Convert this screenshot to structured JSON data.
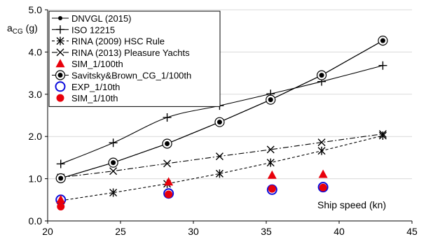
{
  "chart_data": {
    "type": "scatter",
    "xlabel": "Ship speed (kn)",
    "ylabel_main": "a",
    "ylabel_sub": "CG",
    "ylabel_unit": " (g)",
    "xlim": [
      20,
      45
    ],
    "ylim": [
      0,
      5
    ],
    "xticks": [
      20,
      25,
      30,
      35,
      40,
      45
    ],
    "yticks": [
      0.0,
      1.0,
      2.0,
      3.0,
      4.0,
      5.0
    ],
    "xtick_labels": [
      "20",
      "25",
      "30",
      "35",
      "40",
      "45"
    ],
    "ytick_labels": [
      "0.0",
      "1.0",
      "2.0",
      "3.0",
      "4.0",
      "5.0"
    ],
    "grid": "horizontal",
    "legend": "top-left",
    "series": [
      {
        "name": "DNVGL (2015)",
        "marker": "dot",
        "line": "solid",
        "smooth": false,
        "x": [
          20.9,
          24.5,
          28.2,
          31.8,
          35.3,
          38.8,
          43.0
        ],
        "y": [
          1.01,
          1.38,
          1.83,
          2.34,
          2.87,
          3.45,
          4.27
        ]
      },
      {
        "name": "ISO 12215",
        "marker": "plus",
        "line": "solid",
        "smooth": true,
        "x": [
          20.9,
          24.5,
          28.2,
          31.8,
          35.3,
          38.8,
          43.0
        ],
        "y": [
          1.35,
          1.85,
          2.45,
          2.73,
          3.01,
          3.3,
          3.68
        ]
      },
      {
        "name": "RINA (2009) HSC Rule",
        "marker": "asterisk",
        "line": "dashed",
        "x": [
          20.9,
          24.5,
          28.2,
          31.8,
          35.3,
          38.8,
          43.0
        ],
        "y": [
          0.48,
          0.67,
          0.88,
          1.12,
          1.38,
          1.66,
          2.02
        ]
      },
      {
        "name": "RINA (2013) Pleasure Yachts",
        "marker": "x",
        "line": "dashdot",
        "x": [
          20.9,
          24.5,
          28.2,
          31.8,
          35.3,
          38.8,
          43.0
        ],
        "y": [
          1.03,
          1.18,
          1.36,
          1.53,
          1.69,
          1.86,
          2.06
        ]
      },
      {
        "name": "SIM_1/100th",
        "marker": "triangle",
        "color": "#e8000b",
        "line": "none",
        "x": [
          20.9,
          28.3,
          35.4,
          38.9
        ],
        "y": [
          0.5,
          0.92,
          1.08,
          1.1
        ]
      },
      {
        "name": "Savitsky&Brown_CG_1/100th",
        "marker": "circle-dot",
        "line": "solid",
        "x": [
          20.9,
          24.5,
          28.2,
          31.8,
          35.3,
          38.8,
          43.0
        ],
        "y": [
          1.01,
          1.38,
          1.83,
          2.34,
          2.87,
          3.45,
          4.27
        ]
      },
      {
        "name": "EXP_1/10th",
        "marker": "open-circle",
        "color": "#0a0adc",
        "line": "none",
        "x": [
          20.9,
          28.3,
          35.4,
          38.9
        ],
        "y": [
          0.5,
          0.65,
          0.74,
          0.8
        ]
      },
      {
        "name": "SIM_1/10th",
        "marker": "filled-circle",
        "color": "#e8000b",
        "line": "none",
        "x": [
          20.9,
          28.3,
          35.4,
          38.9
        ],
        "y": [
          0.34,
          0.63,
          0.76,
          0.79
        ]
      }
    ]
  }
}
